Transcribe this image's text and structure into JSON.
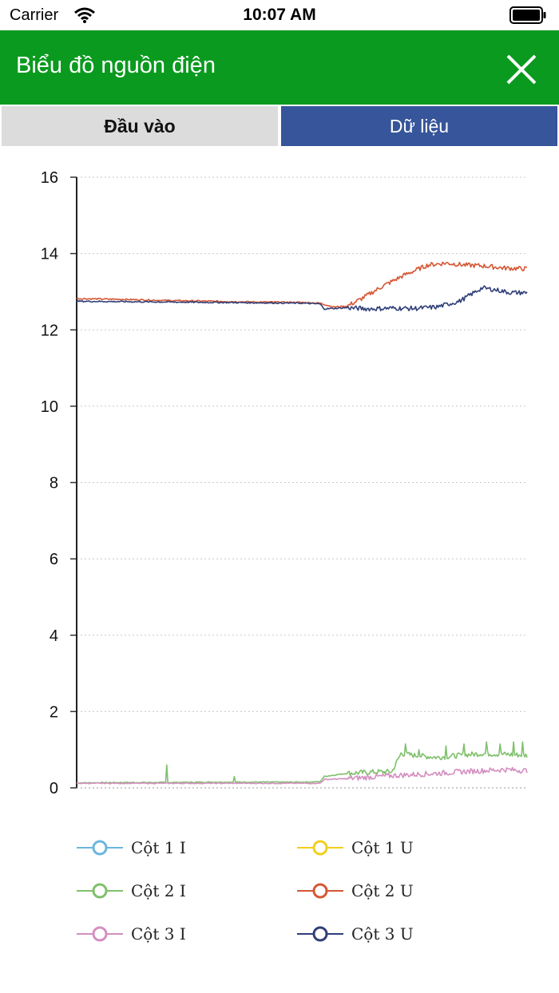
{
  "status_bar": {
    "carrier": "Carrier",
    "time": "10:07 AM",
    "icons": [
      "wifi-icon",
      "battery-icon"
    ]
  },
  "app_bar": {
    "title": "Biểu đồ nguồn điện",
    "close_icon": "close-icon"
  },
  "tabs": [
    {
      "label": "Đầu vào",
      "active": false
    },
    {
      "label": "Dữ liệu",
      "active": true
    }
  ],
  "chart_data": {
    "type": "line",
    "title": "",
    "xlabel": "",
    "ylabel": "",
    "ylim": [
      0,
      16
    ],
    "yticks": [
      "0",
      "2",
      "4",
      "6",
      "8",
      "10",
      "12",
      "14",
      "16"
    ],
    "grid": "horizontal-dotted",
    "x_range": [
      0,
      100
    ],
    "legend_position": "bottom",
    "series": [
      {
        "name": "Cột 1 I",
        "color": "#6bb6dc",
        "points": []
      },
      {
        "name": "Cột 1 U",
        "color": "#f2cf1d",
        "points": []
      },
      {
        "name": "Cột 2 I",
        "color": "#7fc06b",
        "points": [
          [
            0,
            0.13
          ],
          [
            10,
            0.14
          ],
          [
            20,
            0.14
          ],
          [
            30,
            0.15
          ],
          [
            40,
            0.15
          ],
          [
            50,
            0.15
          ],
          [
            54,
            0.16
          ],
          [
            55,
            0.3
          ],
          [
            60,
            0.38
          ],
          [
            67,
            0.42
          ],
          [
            70,
            0.42
          ],
          [
            72,
            0.9
          ],
          [
            75,
            0.85
          ],
          [
            80,
            0.8
          ],
          [
            85,
            0.85
          ],
          [
            90,
            0.9
          ],
          [
            95,
            0.88
          ],
          [
            100,
            0.85
          ]
        ],
        "spikes": [
          [
            20,
            0.6
          ],
          [
            35,
            0.3
          ],
          [
            73,
            1.15
          ],
          [
            76,
            1.0
          ],
          [
            82,
            1.1
          ],
          [
            86,
            1.15
          ],
          [
            91,
            1.2
          ],
          [
            94,
            1.15
          ],
          [
            97,
            1.2
          ],
          [
            99,
            1.2
          ]
        ]
      },
      {
        "name": "Cột 2 U",
        "color": "#d45734",
        "points": [
          [
            0,
            12.82
          ],
          [
            10,
            12.8
          ],
          [
            20,
            12.77
          ],
          [
            30,
            12.75
          ],
          [
            40,
            12.73
          ],
          [
            50,
            12.72
          ],
          [
            54,
            12.7
          ],
          [
            57,
            12.6
          ],
          [
            60,
            12.62
          ],
          [
            63,
            12.8
          ],
          [
            68,
            13.15
          ],
          [
            73,
            13.45
          ],
          [
            78,
            13.7
          ],
          [
            82,
            13.75
          ],
          [
            86,
            13.7
          ],
          [
            90,
            13.68
          ],
          [
            95,
            13.62
          ],
          [
            100,
            13.6
          ]
        ]
      },
      {
        "name": "Cột 3 I",
        "color": "#d48fc0",
        "points": [
          [
            0,
            0.12
          ],
          [
            10,
            0.12
          ],
          [
            20,
            0.12
          ],
          [
            30,
            0.12
          ],
          [
            40,
            0.12
          ],
          [
            50,
            0.12
          ],
          [
            54,
            0.12
          ],
          [
            55,
            0.22
          ],
          [
            60,
            0.24
          ],
          [
            65,
            0.28
          ],
          [
            70,
            0.32
          ],
          [
            75,
            0.35
          ],
          [
            80,
            0.38
          ],
          [
            85,
            0.42
          ],
          [
            90,
            0.45
          ],
          [
            95,
            0.48
          ],
          [
            100,
            0.45
          ]
        ]
      },
      {
        "name": "Cột 3 U",
        "color": "#2f3f78",
        "points": [
          [
            0,
            12.75
          ],
          [
            10,
            12.74
          ],
          [
            20,
            12.73
          ],
          [
            30,
            12.72
          ],
          [
            40,
            12.71
          ],
          [
            50,
            12.7
          ],
          [
            54,
            12.68
          ],
          [
            55,
            12.55
          ],
          [
            60,
            12.58
          ],
          [
            65,
            12.55
          ],
          [
            70,
            12.57
          ],
          [
            75,
            12.56
          ],
          [
            80,
            12.6
          ],
          [
            85,
            12.75
          ],
          [
            90,
            13.1
          ],
          [
            93,
            13.05
          ],
          [
            96,
            12.98
          ],
          [
            100,
            12.97
          ]
        ]
      }
    ]
  }
}
